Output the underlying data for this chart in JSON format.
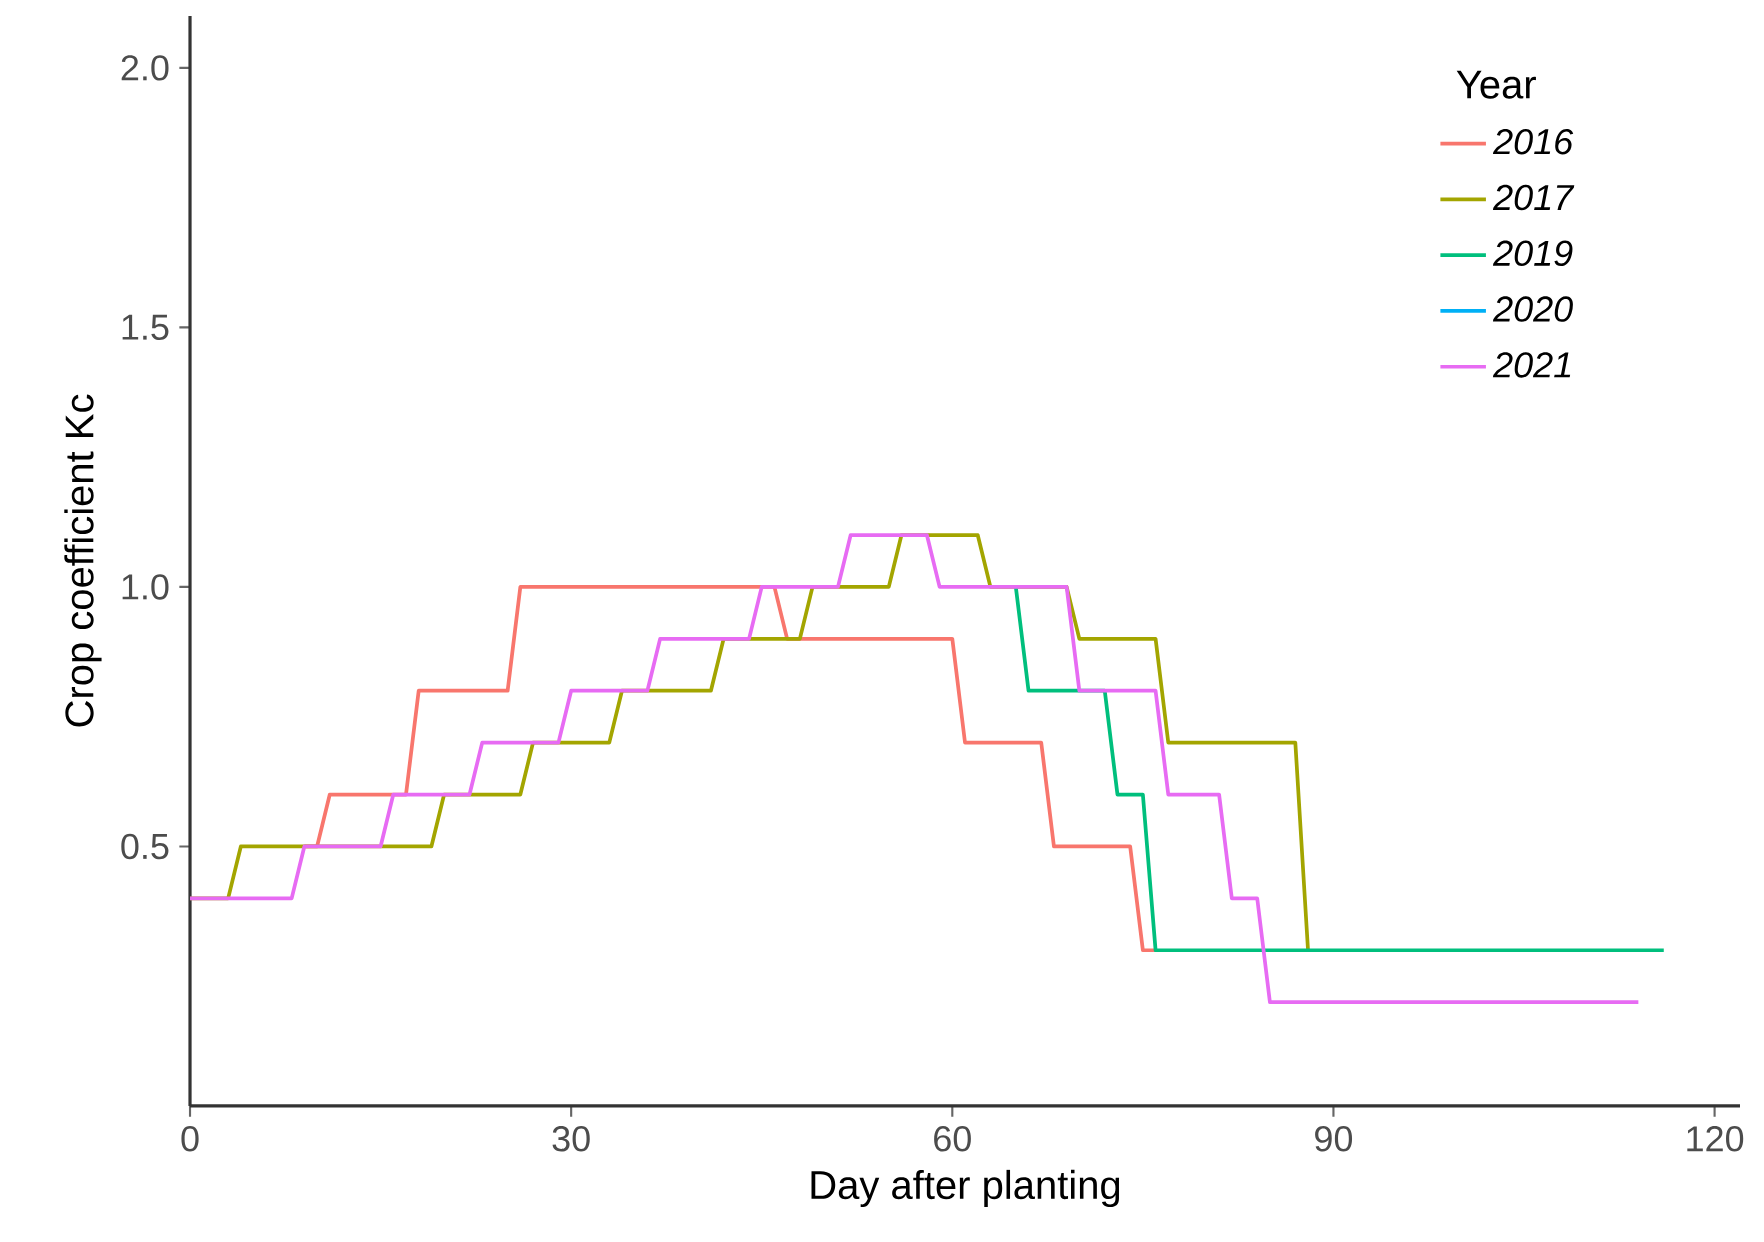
{
  "chart_data": {
    "type": "line",
    "xlabel": "Day after planting",
    "ylabel": "Crop coefficient Kc",
    "legend_title": "Year",
    "xlim": [
      0,
      122
    ],
    "ylim": [
      0,
      2.1
    ],
    "xticks": [
      0,
      30,
      60,
      90,
      120
    ],
    "yticks": [
      {
        "value": 0.5,
        "label": "0.5"
      },
      {
        "value": 1.0,
        "label": "1.0"
      },
      {
        "value": 1.5,
        "label": "1.5"
      },
      {
        "value": 2.0,
        "label": "2.0"
      }
    ],
    "grid": false,
    "legend": "top right",
    "marker": "none",
    "line_style": "solid",
    "series": [
      {
        "name": "2016",
        "color": "#f8766d",
        "x": [
          9,
          10,
          11,
          17,
          18,
          25,
          26,
          46,
          47,
          60,
          61,
          67,
          68,
          74,
          75,
          76
        ],
        "values": [
          0.5,
          0.5,
          0.6,
          0.6,
          0.8,
          0.8,
          1.0,
          1.0,
          0.9,
          0.9,
          0.7,
          0.7,
          0.5,
          0.5,
          0.3,
          0.3
        ]
      },
      {
        "name": "2017",
        "color": "#a3a500",
        "x": [
          0,
          3,
          4,
          19,
          20,
          26,
          27,
          33,
          34,
          41,
          42,
          48,
          49,
          55,
          56,
          62,
          63,
          69,
          70,
          76,
          77,
          87,
          88
        ],
        "values": [
          0.4,
          0.4,
          0.5,
          0.5,
          0.6,
          0.6,
          0.7,
          0.7,
          0.8,
          0.8,
          0.9,
          0.9,
          1.0,
          1.0,
          1.1,
          1.1,
          1.0,
          1.0,
          0.9,
          0.9,
          0.7,
          0.7,
          0.3
        ]
      },
      {
        "name": "2019",
        "color": "#00bf7d",
        "x": [
          65,
          66,
          72,
          73,
          75,
          76,
          116
        ],
        "values": [
          1.0,
          0.8,
          0.8,
          0.6,
          0.6,
          0.3,
          0.3
        ]
      },
      {
        "name": "2020",
        "color": "#00b0f6"
      },
      {
        "name": "2021",
        "color": "#e76bf3",
        "x": [
          0,
          8,
          9,
          15,
          16,
          22,
          23,
          29,
          30,
          36,
          37,
          44,
          45,
          51,
          52,
          58,
          59,
          69,
          70,
          76,
          77,
          81,
          82,
          84,
          85,
          114
        ],
        "values": [
          0.4,
          0.4,
          0.5,
          0.5,
          0.6,
          0.6,
          0.7,
          0.7,
          0.8,
          0.8,
          0.9,
          0.9,
          1.0,
          1.0,
          1.1,
          1.1,
          1.0,
          1.0,
          0.8,
          0.8,
          0.6,
          0.6,
          0.4,
          0.4,
          0.2,
          0.2
        ]
      }
    ]
  }
}
